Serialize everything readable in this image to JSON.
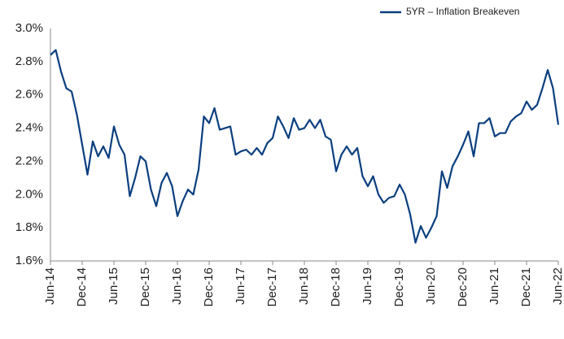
{
  "chart_data": {
    "type": "line",
    "categories": [
      "Jun-14",
      null,
      null,
      null,
      null,
      null,
      "Dec-14",
      null,
      null,
      null,
      null,
      null,
      "Jun-15",
      null,
      null,
      null,
      null,
      null,
      "Dec-15",
      null,
      null,
      null,
      null,
      null,
      "Jun-16",
      null,
      null,
      null,
      null,
      null,
      "Dec-16",
      null,
      null,
      null,
      null,
      null,
      "Jun-17",
      null,
      null,
      null,
      null,
      null,
      "Dec-17",
      null,
      null,
      null,
      null,
      null,
      "Jun-18",
      null,
      null,
      null,
      null,
      null,
      "Dec-18",
      null,
      null,
      null,
      null,
      null,
      "Jun-19",
      null,
      null,
      null,
      null,
      null,
      "Dec-19",
      null,
      null,
      null,
      null,
      null,
      "Jun-20",
      null,
      null,
      null,
      null,
      null,
      "Dec-20",
      null,
      null,
      null,
      null,
      null,
      "Jun-21",
      null,
      null,
      null,
      null,
      null,
      "Dec-21",
      null,
      null,
      null,
      null,
      null,
      "Jun-22"
    ],
    "series": [
      {
        "name": "5YR – Inflation Breakeven",
        "color": "#0b3f7f",
        "values": [
          2.84,
          2.87,
          2.74,
          2.64,
          2.62,
          2.48,
          2.3,
          2.12,
          2.32,
          2.23,
          2.29,
          2.22,
          2.41,
          2.3,
          2.24,
          1.99,
          2.1,
          2.23,
          2.2,
          2.03,
          1.93,
          2.07,
          2.13,
          2.05,
          1.87,
          1.96,
          2.03,
          2.0,
          2.15,
          2.47,
          2.43,
          2.52,
          2.39,
          2.4,
          2.41,
          2.24,
          2.26,
          2.27,
          2.24,
          2.28,
          2.24,
          2.31,
          2.34,
          2.47,
          2.41,
          2.34,
          2.46,
          2.39,
          2.4,
          2.45,
          2.4,
          2.45,
          2.35,
          2.33,
          2.14,
          2.24,
          2.29,
          2.24,
          2.28,
          2.11,
          2.05,
          2.11,
          2.0,
          1.95,
          1.98,
          1.99,
          2.06,
          2.0,
          1.88,
          1.71,
          1.81,
          1.74,
          1.8,
          1.87,
          2.14,
          2.04,
          2.17,
          2.23,
          2.3,
          2.38,
          2.23,
          2.43,
          2.43,
          2.46,
          2.35,
          2.37,
          2.37,
          2.44,
          2.47,
          2.49,
          2.56,
          2.51,
          2.54,
          2.64,
          2.75,
          2.64,
          2.42
        ]
      }
    ],
    "ylim": [
      1.6,
      3.0
    ],
    "yticks": [
      {
        "value": 1.6,
        "label": "1.6%"
      },
      {
        "value": 1.8,
        "label": "1.8%"
      },
      {
        "value": 2.0,
        "label": "2.0%"
      },
      {
        "value": 2.2,
        "label": "2.2%"
      },
      {
        "value": 2.4,
        "label": "2.4%"
      },
      {
        "value": 2.6,
        "label": "2.6%"
      },
      {
        "value": 2.8,
        "label": "2.8%"
      },
      {
        "value": 3.0,
        "label": "3.0%"
      }
    ],
    "grid": false,
    "legend": "top-right"
  }
}
